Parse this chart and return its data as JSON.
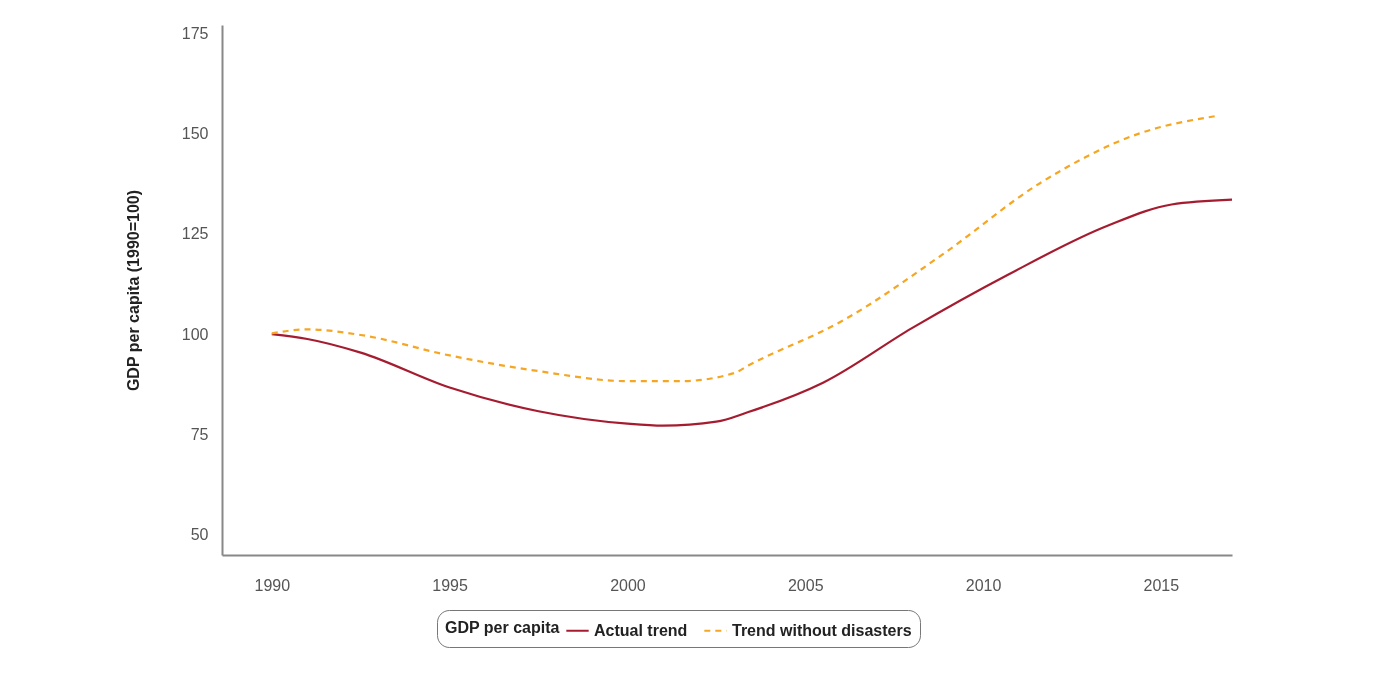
{
  "chart_data": {
    "type": "line",
    "ylabel": "GDP per capita (1990=100)",
    "legend_title": "GDP per capita",
    "legend": "bottom",
    "grid": false,
    "xlim": [
      1988.6,
      2017
    ],
    "xticks": [
      1990,
      1995,
      2000,
      2005,
      2010,
      2015
    ],
    "ylim": [
      45,
      177
    ],
    "yticks": [
      50,
      75,
      100,
      125,
      150,
      175
    ],
    "series": [
      {
        "name": "Actual trend",
        "color": "#a51c30",
        "line_style": "solid",
        "x": [
          1990,
          1991,
          1992.5,
          1995,
          1997.5,
          2000,
          2001,
          2002.5,
          2003.4,
          2005.5,
          2008,
          2010.7,
          2013.5,
          2015.3,
          2017
        ],
        "values": [
          100,
          98.8,
          95.4,
          86.7,
          80.8,
          77.7,
          77.2,
          78.2,
          80.6,
          87.9,
          101.5,
          114.8,
          127,
          132.3,
          133.5
        ]
      },
      {
        "name": "Trend without disasters",
        "color": "#f5a623",
        "line_style": "dashed",
        "x": [
          1990,
          1991,
          1992.5,
          1995,
          1997.5,
          2000,
          2001.5,
          2003,
          2003.4,
          2006.1,
          2008.9,
          2011.6,
          2014.4,
          2016.6
        ],
        "values": [
          100.2,
          101.2,
          99.8,
          94.7,
          90.8,
          88.3,
          88.3,
          90.3,
          92.2,
          103.6,
          120.1,
          137.6,
          150,
          154.4
        ]
      }
    ]
  }
}
